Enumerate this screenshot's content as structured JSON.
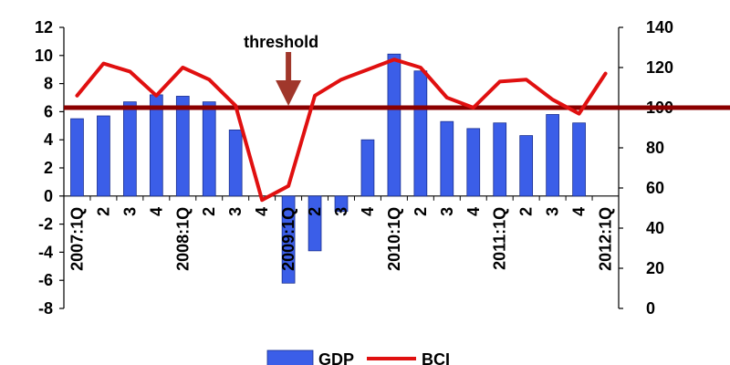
{
  "chart_data": {
    "type": "bar",
    "categories": [
      "2007:1Q",
      "2",
      "3",
      "4",
      "2008:1Q",
      "2",
      "3",
      "4",
      "2009:1Q",
      "2",
      "3",
      "4",
      "2010:1Q",
      "2",
      "3",
      "4",
      "2011:1Q",
      "2",
      "3",
      "4",
      "2012:1Q"
    ],
    "series": [
      {
        "name": "GDP",
        "axis": "left",
        "kind": "bar",
        "values": [
          5.5,
          5.7,
          6.7,
          7.2,
          7.1,
          6.7,
          4.7,
          null,
          -6.2,
          -3.9,
          -1.1,
          4.0,
          10.1,
          8.9,
          5.3,
          4.8,
          5.2,
          4.3,
          5.8,
          5.2,
          null
        ]
      },
      {
        "name": "BCI",
        "axis": "right",
        "kind": "line",
        "values": [
          106,
          122,
          118,
          106,
          120,
          114,
          101,
          54,
          61,
          106,
          114,
          119,
          124,
          120,
          105,
          100,
          113,
          114,
          104,
          97,
          117
        ]
      }
    ],
    "y_left": {
      "ylim": [
        -8,
        12
      ],
      "ticks": [
        -8,
        -6,
        -4,
        -2,
        0,
        2,
        4,
        6,
        8,
        10,
        12
      ]
    },
    "y_right": {
      "ylim": [
        0,
        140
      ],
      "ticks": [
        0,
        20,
        40,
        60,
        80,
        100,
        120,
        140
      ]
    },
    "threshold": {
      "value": 100,
      "label": "threshold"
    },
    "colors": {
      "bar": "#3b5ee8",
      "line": "#e01010",
      "threshold": "#8b0000",
      "arrow": "#a0372b"
    }
  }
}
